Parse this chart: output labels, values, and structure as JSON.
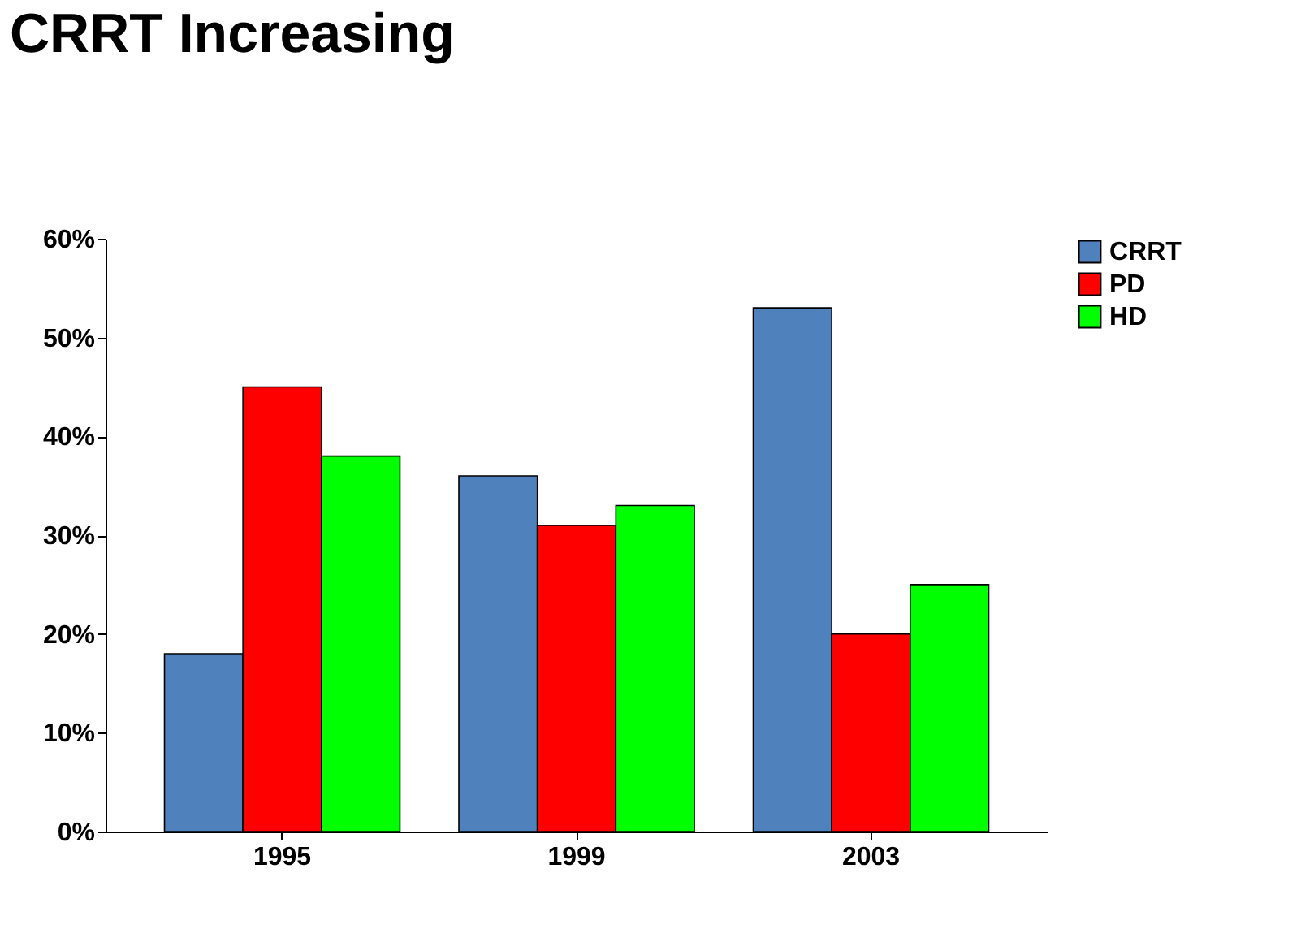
{
  "chart_data": {
    "type": "bar",
    "title": "CRRT Increasing",
    "categories": [
      "1995",
      "1999",
      "2003"
    ],
    "series": [
      {
        "name": "CRRT",
        "color": "#4f81bd",
        "values": [
          18,
          36,
          53
        ]
      },
      {
        "name": "PD",
        "color": "#ff0000",
        "values": [
          45,
          31,
          20
        ]
      },
      {
        "name": "HD",
        "color": "#00ff00",
        "values": [
          38,
          33,
          25
        ]
      }
    ],
    "ylim": [
      0,
      60
    ],
    "yticks": [
      {
        "value": 0,
        "label": "0%"
      },
      {
        "value": 10,
        "label": "10%"
      },
      {
        "value": 20,
        "label": "20%"
      },
      {
        "value": 30,
        "label": "30%"
      },
      {
        "value": 40,
        "label": "40%"
      },
      {
        "value": 50,
        "label": "50%"
      },
      {
        "value": 60,
        "label": "60%"
      }
    ],
    "grid": false,
    "legend": "right"
  }
}
